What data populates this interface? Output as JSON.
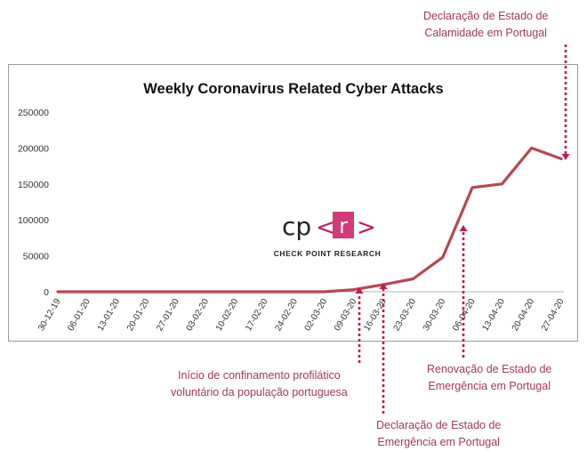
{
  "chart_data": {
    "type": "line",
    "title": "Weekly Coronavirus Related Cyber Attacks",
    "xlabel": "",
    "ylabel": "",
    "ylim": [
      0,
      250000
    ],
    "yticks": [
      "250000",
      "200000",
      "150000",
      "100000",
      "50000",
      "0"
    ],
    "categories": [
      "30-12-19",
      "06-01-20",
      "13-01-20",
      "20-01-20",
      "27-01-20",
      "03-02-20",
      "10-02-20",
      "17-02-20",
      "24-02-20",
      "02-03-20",
      "09-03-20",
      "16-03-20",
      "23-03-20",
      "30-03-20",
      "06-04-20",
      "13-04-20",
      "20-04-20",
      "27-04-20"
    ],
    "series": [
      {
        "values": [
          0,
          0,
          0,
          0,
          0,
          0,
          0,
          0,
          0,
          0,
          3000,
          10000,
          18000,
          48000,
          145000,
          150000,
          200000,
          185000
        ]
      }
    ],
    "grid": false,
    "line_color": "#b5484e"
  },
  "logo": {
    "left": "cp",
    "lt": "<",
    "r": "r",
    "gt": ">",
    "tagline": "CHECK POINT RESEARCH"
  },
  "annotations": {
    "calamidade": [
      "Declaração de Estado de",
      "Calamidade em Portugal"
    ],
    "confinamento": [
      "Início de confinamento profilático",
      "voluntário da população portuguesa"
    ],
    "emergencia": [
      "Declaração de Estado de",
      "Emergência em Portugal"
    ],
    "renovacao": [
      "Renovação de Estado de",
      "Emergência em Portugal"
    ]
  },
  "colors": {
    "accent": "#c2185b",
    "annotation_text": "#a03a5a"
  }
}
